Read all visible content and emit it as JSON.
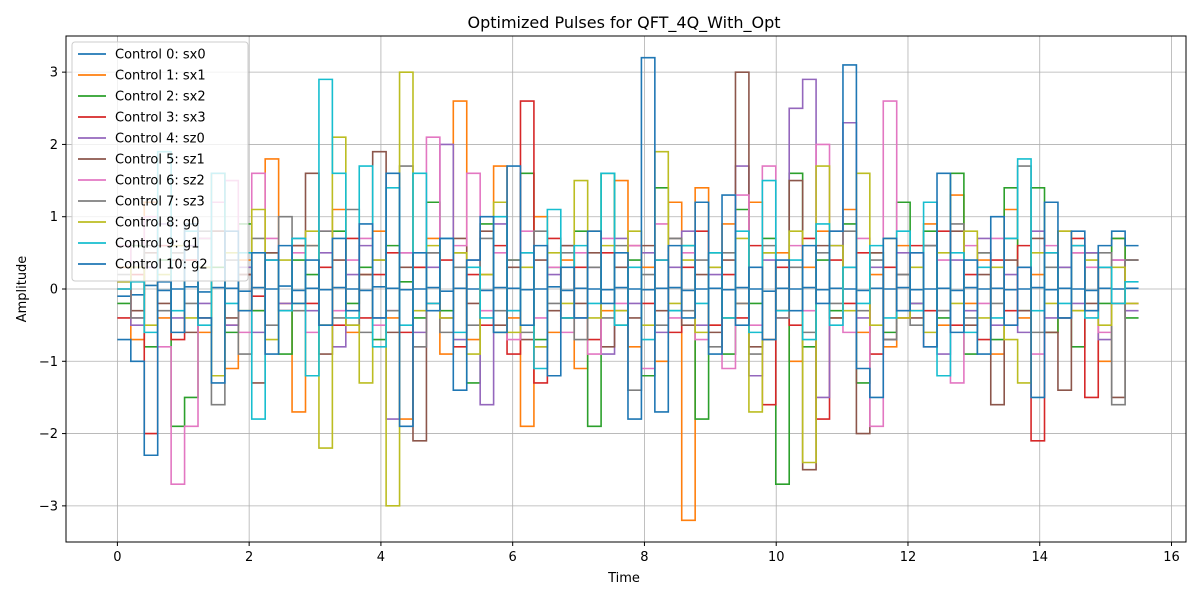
{
  "chart_data": {
    "type": "line",
    "step": true,
    "title": "Optimized Pulses for QFT_4Q_With_Opt",
    "xlabel": "Time",
    "ylabel": "Amplitude",
    "xlim": [
      -0.78,
      16.22
    ],
    "ylim": [
      -3.5,
      3.5
    ],
    "xticks": [
      0,
      2,
      4,
      6,
      8,
      10,
      12,
      14,
      16
    ],
    "yticks": [
      -3,
      -2,
      -1,
      0,
      1,
      2,
      3
    ],
    "ytick_labels": [
      "−3",
      "−2",
      "−1",
      "0",
      "1",
      "2",
      "3"
    ],
    "grid": true,
    "legend_position": "top-left",
    "time_start": 0,
    "time_end": 15.5,
    "series": [
      {
        "name": "Control 0: sx0",
        "color": "#1f77b4",
        "values": [
          -0.1,
          -0.08,
          0.05,
          -0.02,
          0.0,
          0.03,
          -0.04,
          0.02,
          0.01,
          -0.03,
          0.02,
          0.0,
          0.04,
          -0.02,
          0.01,
          -0.01,
          0.02,
          0.0,
          -0.02,
          0.03,
          0.01,
          -0.01,
          0.0,
          0.02,
          -0.03,
          0.01,
          0.0,
          -0.02,
          0.02,
          0.01,
          -0.01,
          0.0,
          0.03,
          -0.02,
          0.01,
          0.0,
          -0.01,
          0.02,
          0.0,
          -0.01,
          0.01,
          0.02,
          -0.02,
          0.0,
          0.01,
          -0.01,
          0.02,
          0.0,
          -0.03,
          0.01,
          0.0,
          0.02,
          -0.01,
          0.01,
          0.0,
          -0.02,
          0.01,
          0.0,
          0.02,
          -0.01,
          0.0,
          0.01,
          -0.02,
          0.02,
          0.0,
          0.01,
          -0.01,
          0.0,
          0.02,
          -0.01,
          0.01,
          0.0,
          -0.02,
          0.01,
          0.0,
          0.01
        ]
      },
      {
        "name": "Control 1: sx1",
        "color": "#ff7f0e",
        "values": [
          0.3,
          -0.7,
          1.2,
          -0.4,
          0.5,
          0.9,
          -0.6,
          1.6,
          -1.1,
          0.4,
          -0.3,
          1.8,
          -0.2,
          -1.7,
          0.6,
          -0.5,
          1.1,
          -0.6,
          0.2,
          0.8,
          -0.4,
          -1.8,
          0.3,
          0.7,
          -0.9,
          2.6,
          -0.7,
          0.2,
          1.7,
          -0.4,
          -1.9,
          1.0,
          -0.6,
          0.4,
          -1.1,
          0.8,
          -0.3,
          1.5,
          -0.8,
          0.3,
          -1.0,
          1.2,
          -3.2,
          1.4,
          -0.5,
          0.9,
          -0.2,
          1.2,
          -0.7,
          0.5,
          -1.0,
          0.3,
          0.8,
          -0.4,
          1.1,
          -0.6,
          0.2,
          -0.8,
          0.6,
          -0.3,
          0.9,
          -0.5,
          1.3,
          -0.2,
          0.4,
          -0.9,
          1.1,
          -0.4,
          0.2,
          -0.6,
          0.8,
          -0.3,
          0.5,
          -1.0,
          0.7,
          -0.2
        ]
      },
      {
        "name": "Control 2: sx2",
        "color": "#2ca02c",
        "values": [
          -0.2,
          0.6,
          -0.8,
          0.4,
          -1.9,
          -1.5,
          0.7,
          0.3,
          -0.6,
          0.9,
          -0.3,
          0.5,
          -0.9,
          0.4,
          0.2,
          -0.5,
          0.8,
          -0.2,
          0.3,
          -0.7,
          0.6,
          0.1,
          -0.4,
          1.2,
          -0.3,
          0.5,
          -1.3,
          0.9,
          -0.6,
          0.4,
          1.6,
          -0.7,
          0.3,
          -0.4,
          0.8,
          -1.9,
          1.6,
          -0.5,
          0.4,
          -1.2,
          1.4,
          -0.3,
          0.6,
          -1.8,
          0.5,
          -0.9,
          1.1,
          -0.2,
          0.7,
          -2.7,
          1.6,
          -0.8,
          0.4,
          -0.3,
          0.9,
          -1.3,
          0.5,
          -0.6,
          1.2,
          -0.2,
          0.8,
          -0.4,
          1.6,
          -0.9,
          0.5,
          -0.7,
          1.4,
          -0.3,
          1.4,
          -0.6,
          0.3,
          -0.8,
          0.5,
          -0.2,
          0.7,
          -0.4
        ]
      },
      {
        "name": "Control 3: sx3",
        "color": "#d62728",
        "values": [
          -0.4,
          0.2,
          -2.0,
          0.6,
          -0.7,
          0.4,
          -0.4,
          0.8,
          -0.5,
          0.2,
          -0.1,
          0.4,
          -0.3,
          0.6,
          -0.2,
          0.3,
          -0.5,
          0.7,
          -0.4,
          0.2,
          0.5,
          -0.6,
          0.3,
          -0.2,
          0.4,
          -0.8,
          0.2,
          -0.5,
          0.6,
          -0.9,
          2.6,
          -1.3,
          0.7,
          -0.4,
          0.3,
          -0.7,
          0.5,
          -0.3,
          0.6,
          -0.2,
          0.4,
          -0.6,
          0.3,
          0.8,
          -0.5,
          0.2,
          -0.4,
          0.6,
          -1.6,
          0.3,
          -0.5,
          0.7,
          -1.8,
          0.4,
          -0.2,
          0.5,
          -0.9,
          0.3,
          -0.4,
          0.6,
          -0.3,
          0.8,
          -0.5,
          0.2,
          -0.7,
          0.4,
          -0.3,
          0.6,
          -2.1,
          0.5,
          -0.4,
          0.7,
          -1.5,
          0.3,
          -0.2,
          0.4
        ]
      },
      {
        "name": "Control 4: sz0",
        "color": "#9467bd",
        "values": [
          0.1,
          -0.5,
          0.3,
          0.9,
          -0.4,
          0.6,
          -0.2,
          0.8,
          -0.5,
          0.3,
          -0.6,
          0.4,
          -0.2,
          0.7,
          -0.3,
          0.5,
          -0.8,
          0.2,
          0.6,
          -0.4,
          -1.8,
          0.5,
          -0.6,
          0.3,
          2.0,
          -0.7,
          0.4,
          -1.6,
          0.9,
          -0.3,
          0.5,
          -0.8,
          0.2,
          0.6,
          -0.4,
          0.3,
          -0.9,
          0.7,
          -0.2,
          0.5,
          -0.6,
          0.3,
          0.8,
          -0.5,
          0.2,
          -0.4,
          1.7,
          -1.2,
          0.4,
          -0.3,
          2.5,
          2.9,
          -1.5,
          0.6,
          2.3,
          -0.4,
          0.3,
          -0.7,
          0.5,
          -0.2,
          0.6,
          -0.9,
          0.4,
          -0.3,
          0.7,
          -0.5,
          0.2,
          -0.6,
          0.8,
          -0.4,
          0.3,
          -0.2,
          0.5,
          -0.7,
          0.4,
          -0.3
        ]
      },
      {
        "name": "Control 5: sz1",
        "color": "#8c564b",
        "values": [
          0.0,
          -0.3,
          0.5,
          -0.2,
          0.4,
          -0.6,
          0.3,
          0.8,
          -0.4,
          0.2,
          -1.3,
          0.5,
          -0.3,
          0.6,
          1.6,
          -0.9,
          0.4,
          -0.5,
          0.2,
          1.9,
          -0.6,
          0.3,
          -2.1,
          0.5,
          -0.4,
          0.7,
          -0.2,
          0.8,
          -0.5,
          0.3,
          -0.7,
          0.4,
          -0.3,
          0.6,
          -0.2,
          0.5,
          -0.8,
          0.3,
          -0.4,
          0.6,
          -0.3,
          0.7,
          -0.5,
          0.2,
          -0.6,
          0.4,
          3.0,
          -0.8,
          0.5,
          -0.3,
          1.5,
          -2.5,
          0.6,
          -0.4,
          0.3,
          -2.0,
          0.5,
          -0.7,
          0.2,
          -0.4,
          0.6,
          -0.3,
          0.8,
          -0.5,
          0.2,
          -1.6,
          0.4,
          -0.3,
          0.7,
          -0.6,
          -1.4,
          0.5,
          -0.2,
          0.3,
          -1.5,
          0.4
        ]
      },
      {
        "name": "Control 6: sz2",
        "color": "#e377c2",
        "values": [
          0.6,
          -0.4,
          1.0,
          -0.8,
          -2.7,
          -1.9,
          0.7,
          1.2,
          1.5,
          -0.6,
          1.6,
          0.7,
          -0.3,
          0.5,
          -0.6,
          0.8,
          -0.3,
          0.4,
          0.7,
          -0.5,
          -0.3,
          0.5,
          -0.8,
          2.1,
          -0.4,
          0.6,
          1.6,
          -0.3,
          0.5,
          -0.7,
          0.8,
          -0.4,
          0.3,
          -0.6,
          0.5,
          -0.9,
          0.7,
          -0.2,
          0.6,
          -1.1,
          0.9,
          -0.4,
          0.5,
          -0.7,
          0.3,
          -1.1,
          1.3,
          -0.5,
          1.7,
          -0.4,
          0.6,
          -0.3,
          2.0,
          0.8,
          -0.6,
          0.7,
          -1.9,
          2.6,
          -0.3,
          0.5,
          -0.8,
          0.4,
          -1.3,
          0.6,
          -0.2,
          0.7,
          -0.5,
          0.3,
          -0.9,
          0.6,
          -0.4,
          0.5,
          0.3,
          -0.6,
          0.4,
          -0.2
        ]
      },
      {
        "name": "Control 7: sz3",
        "color": "#7f7f7f",
        "values": [
          0.2,
          -0.4,
          0.6,
          -0.3,
          0.5,
          -0.2,
          0.8,
          -1.6,
          0.4,
          -0.9,
          0.7,
          -0.5,
          1.0,
          -0.3,
          0.6,
          0.8,
          -0.4,
          1.1,
          -0.6,
          0.4,
          -0.3,
          1.7,
          -0.8,
          0.5,
          -0.6,
          0.3,
          -0.5,
          0.7,
          -0.3,
          0.4,
          -0.6,
          0.8,
          -0.2,
          0.5,
          -0.7,
          0.3,
          -0.4,
          0.6,
          -1.4,
          0.2,
          -0.5,
          0.7,
          -0.3,
          0.4,
          -0.8,
          0.5,
          -0.2,
          -0.9,
          0.6,
          -0.4,
          0.3,
          -0.6,
          0.5,
          -0.2,
          0.8,
          -0.3,
          0.4,
          -0.7,
          0.2,
          -0.5,
          0.6,
          -0.3,
          0.9,
          -0.4,
          0.5,
          -0.2,
          0.7,
          1.7,
          -0.6,
          0.3,
          -0.4,
          0.6,
          -0.3,
          0.5,
          -1.6,
          0.4
        ]
      },
      {
        "name": "Control 8: g0",
        "color": "#bcbd22",
        "values": [
          0.1,
          0.3,
          -0.5,
          0.2,
          0.6,
          -0.4,
          0.3,
          -1.2,
          0.5,
          -0.3,
          1.1,
          -0.7,
          0.4,
          -0.2,
          0.8,
          -2.2,
          2.1,
          -0.5,
          -1.3,
          0.4,
          -3.0,
          3.0,
          -0.3,
          0.6,
          -0.4,
          0.5,
          -0.9,
          0.2,
          1.2,
          -0.6,
          0.3,
          -0.8,
          0.5,
          -0.2,
          1.5,
          -0.4,
          0.6,
          -0.3,
          0.8,
          -0.5,
          1.9,
          -0.2,
          0.4,
          -0.6,
          0.3,
          -0.4,
          0.7,
          -1.7,
          0.5,
          -0.3,
          0.8,
          -2.4,
          1.7,
          0.6,
          -0.3,
          1.6,
          -0.5,
          0.7,
          -0.4,
          0.3,
          -0.6,
          0.5,
          -0.2,
          0.8,
          -0.4,
          0.3,
          -0.7,
          -1.3,
          0.5,
          -0.2,
          0.8,
          -0.3,
          0.4,
          -0.5,
          0.3,
          -0.2
        ]
      },
      {
        "name": "Control 9: g1",
        "color": "#17becf",
        "values": [
          0.0,
          0.1,
          -0.6,
          1.9,
          -0.3,
          0.8,
          -0.5,
          1.6,
          -0.2,
          0.5,
          -1.8,
          0.4,
          -0.3,
          0.7,
          -1.2,
          2.9,
          1.6,
          -0.4,
          1.7,
          -0.8,
          1.4,
          -0.5,
          1.6,
          -0.2,
          0.7,
          -0.6,
          0.3,
          -0.4,
          1.0,
          -0.3,
          0.5,
          -1.1,
          1.1,
          -0.4,
          0.6,
          -0.2,
          1.6,
          -0.5,
          0.3,
          -0.7,
          0.4,
          -0.3,
          0.6,
          -0.2,
          0.5,
          -0.4,
          0.8,
          -0.6,
          1.5,
          -0.3,
          0.4,
          -0.7,
          0.9,
          -0.5,
          0.3,
          -0.2,
          0.6,
          -0.4,
          0.8,
          -0.3,
          1.2,
          -1.2,
          0.5,
          -0.6,
          0.3,
          -0.4,
          0.7,
          1.8,
          -0.3,
          0.5,
          -0.2,
          0.6,
          -0.4,
          0.3,
          -0.2,
          0.1
        ]
      },
      {
        "name": "Control 10: g2",
        "color": "#1f77b4",
        "values": [
          -0.7,
          -1.0,
          -2.3,
          0.1,
          -0.6,
          0.9,
          -0.4,
          -1.3,
          0.8,
          -0.3,
          0.5,
          -0.9,
          0.6,
          -0.2,
          0.4,
          -0.5,
          0.7,
          -0.3,
          0.9,
          -0.4,
          1.6,
          -1.9,
          0.5,
          -0.3,
          0.7,
          -1.4,
          0.4,
          1.0,
          -0.6,
          1.7,
          -0.5,
          0.6,
          -1.2,
          0.3,
          -0.4,
          0.8,
          -0.2,
          0.5,
          -1.8,
          3.2,
          -1.7,
          0.6,
          -0.4,
          1.2,
          -0.9,
          1.3,
          -0.5,
          0.3,
          -0.7,
          0.4,
          -0.3,
          0.6,
          -0.2,
          0.8,
          3.1,
          -1.1,
          -1.5,
          0.7,
          -0.3,
          0.5,
          -0.8,
          1.6,
          -0.6,
          0.4,
          -0.9,
          1.0,
          -0.5,
          0.3,
          -1.5,
          1.2,
          -0.4,
          0.8,
          -0.3,
          0.6,
          0.8,
          0.6
        ]
      }
    ]
  }
}
